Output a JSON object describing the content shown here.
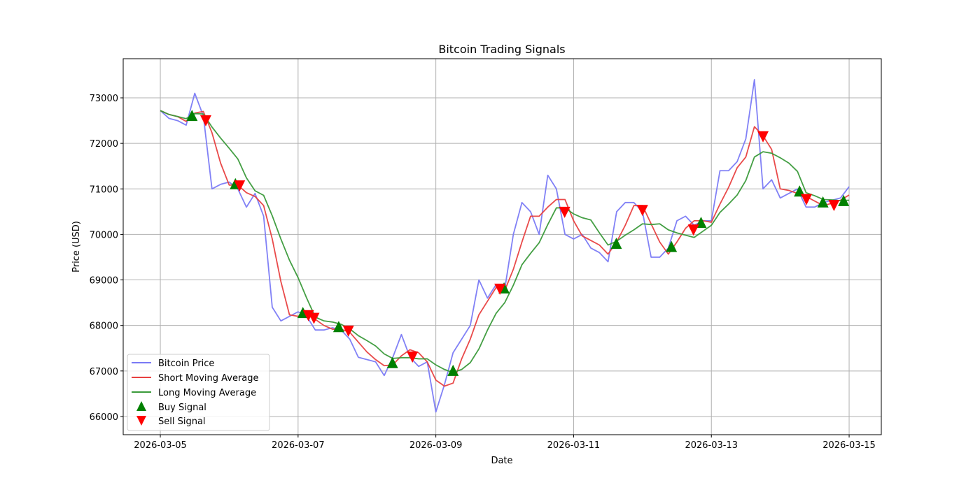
{
  "chart_data": {
    "type": "line",
    "title": "Bitcoin Trading Signals",
    "xlabel": "Date",
    "ylabel": "Price (USD)",
    "x_start": "2026-03-05",
    "x_step_days": 0.125,
    "xlim_days": [
      -0.539,
      10.467
    ],
    "ylim": [
      65600,
      73860
    ],
    "grid": true,
    "legend_position": "lower-left",
    "x_ticks": [
      {
        "day": 0,
        "label": "2026-03-05"
      },
      {
        "day": 2,
        "label": "2026-03-07"
      },
      {
        "day": 4,
        "label": "2026-03-09"
      },
      {
        "day": 6,
        "label": "2026-03-11"
      },
      {
        "day": 8,
        "label": "2026-03-13"
      },
      {
        "day": 10,
        "label": "2026-03-15"
      }
    ],
    "y_ticks": [
      66000,
      67000,
      68000,
      69000,
      70000,
      71000,
      72000,
      73000
    ],
    "short_window": 3,
    "long_window": 6,
    "price": [
      72720,
      72550,
      72500,
      72400,
      73100,
      72600,
      71000,
      71100,
      71150,
      71000,
      70600,
      70900,
      70400,
      68400,
      68100,
      68200,
      68300,
      68200,
      67900,
      67900,
      67950,
      67900,
      67700,
      67300,
      67250,
      67200,
      66900,
      67300,
      67800,
      67300,
      67100,
      67200,
      66100,
      66700,
      67400,
      67700,
      68000,
      69000,
      68600,
      68900,
      68800,
      70000,
      70700,
      70500,
      70000,
      71300,
      71000,
      70000,
      69900,
      70000,
      69700,
      69600,
      69400,
      70500,
      70700,
      70700,
      70500,
      69500,
      69500,
      69700,
      70300,
      70400,
      70200,
      70300,
      70300,
      71400,
      71400,
      71600,
      72100,
      73400,
      71000,
      71200,
      70800,
      70900,
      71000,
      70600,
      70600,
      70700,
      70750,
      70800,
      71050
    ],
    "series": [
      {
        "name": "Bitcoin Price",
        "color": "#7a7af5"
      },
      {
        "name": "Short Moving Average",
        "color": "#e84040"
      },
      {
        "name": "Long Moving Average",
        "color": "#3a9a3a"
      }
    ],
    "buy_signals": {
      "name": "Buy Signal",
      "color": "#008000",
      "points": [
        [
          0.46,
          72600
        ],
        [
          1.09,
          71100
        ],
        [
          2.07,
          68270
        ],
        [
          2.59,
          67960
        ],
        [
          3.37,
          67170
        ],
        [
          4.25,
          67000
        ],
        [
          4.99,
          68810
        ],
        [
          6.62,
          69790
        ],
        [
          7.42,
          69720
        ],
        [
          7.85,
          70250
        ],
        [
          9.28,
          70940
        ],
        [
          9.62,
          70700
        ],
        [
          9.92,
          70730
        ]
      ]
    },
    "sell_signals": {
      "name": "Sell Signal",
      "color": "#ff0000",
      "points": [
        [
          0.66,
          72510
        ],
        [
          1.15,
          71080
        ],
        [
          2.15,
          68230
        ],
        [
          2.23,
          68170
        ],
        [
          2.73,
          67890
        ],
        [
          3.66,
          67320
        ],
        [
          4.93,
          68810
        ],
        [
          5.87,
          70500
        ],
        [
          7.0,
          70540
        ],
        [
          7.74,
          70110
        ],
        [
          8.75,
          72160
        ],
        [
          9.38,
          70780
        ],
        [
          9.78,
          70650
        ]
      ]
    }
  }
}
